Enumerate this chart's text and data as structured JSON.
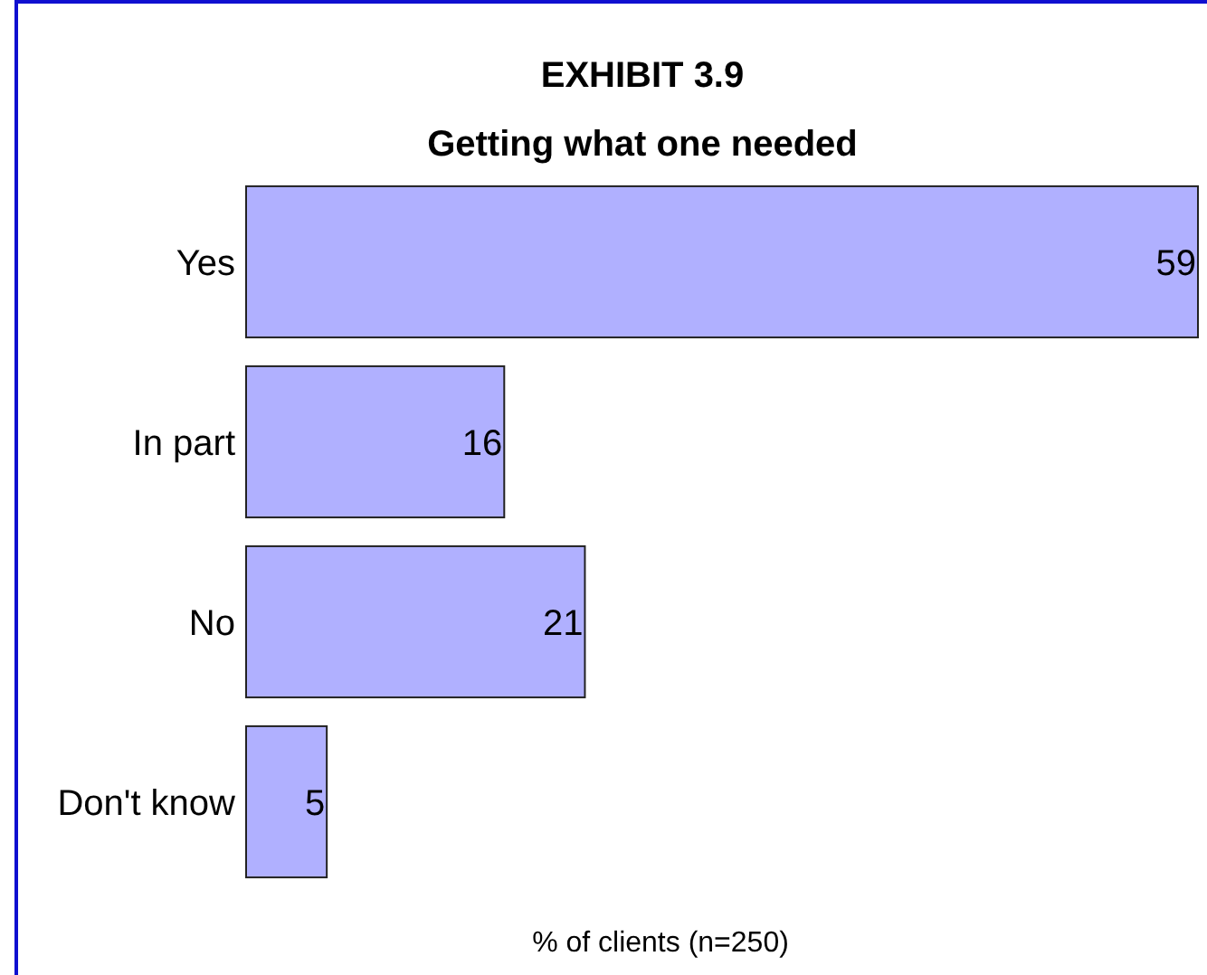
{
  "chart_data": {
    "type": "bar",
    "orientation": "horizontal",
    "title": "EXHIBIT 3.9",
    "subtitle": "Getting what one needed",
    "xlabel": "% of clients (n=250)",
    "categories": [
      "Yes",
      "In part",
      "No",
      "Don't know"
    ],
    "values": [
      59,
      16,
      21,
      5
    ],
    "color": "#b0b0ff",
    "data_labels": true
  }
}
